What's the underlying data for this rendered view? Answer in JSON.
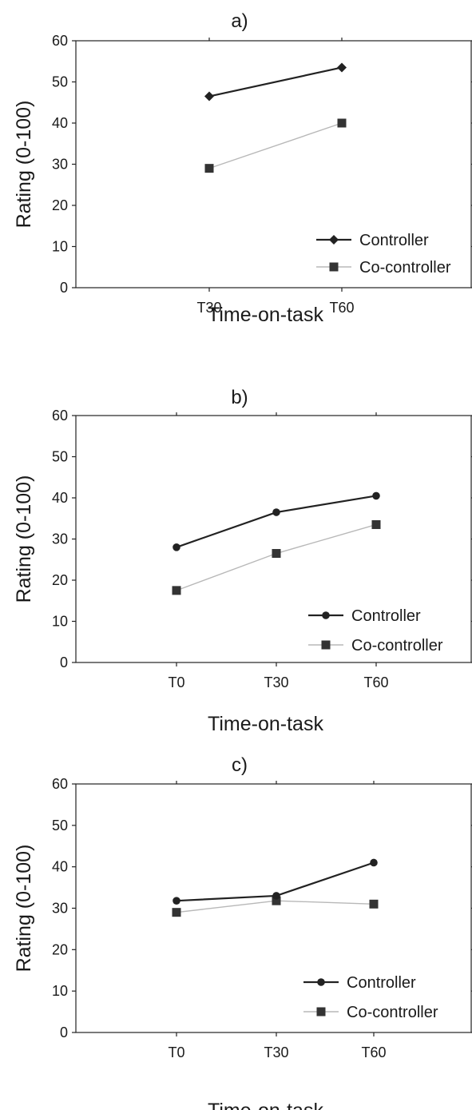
{
  "chart_data": [
    {
      "type": "line",
      "title": "a)",
      "xlabel": "Time-on-task",
      "ylabel": "Rating (0-100)",
      "ylim": [
        0,
        60
      ],
      "yticks": [
        "0",
        "10",
        "20",
        "30",
        "40",
        "50",
        "60"
      ],
      "categories": [
        "T30",
        "T60"
      ],
      "legend_position": "bottom-right",
      "grid": false,
      "series": [
        {
          "name": "Controller",
          "values": [
            46.5,
            53.5
          ],
          "color": "#222222",
          "marker": "diamond"
        },
        {
          "name": "Co-controller",
          "values": [
            29,
            40
          ],
          "color": "#b8b8b8",
          "marker": "square"
        }
      ]
    },
    {
      "type": "line",
      "title": "b)",
      "xlabel": "Time-on-task",
      "ylabel": "Rating (0-100)",
      "ylim": [
        0,
        60
      ],
      "yticks": [
        "0",
        "10",
        "20",
        "30",
        "40",
        "50",
        "60"
      ],
      "categories": [
        "T0",
        "T30",
        "T60"
      ],
      "legend_position": "bottom-right",
      "grid": false,
      "series": [
        {
          "name": "Controller",
          "values": [
            28,
            36.5,
            40.5
          ],
          "color": "#222222",
          "marker": "circle"
        },
        {
          "name": "Co-controller",
          "values": [
            17.5,
            26.5,
            33.5
          ],
          "color": "#b8b8b8",
          "marker": "square"
        }
      ]
    },
    {
      "type": "line",
      "title": "c)",
      "xlabel": "Time-on-task",
      "ylabel": "Rating (0-100)",
      "ylim": [
        0,
        60
      ],
      "yticks": [
        "0",
        "10",
        "20",
        "30",
        "40",
        "50",
        "60"
      ],
      "categories": [
        "T0",
        "T30",
        "T60"
      ],
      "legend_position": "bottom-right",
      "grid": false,
      "series": [
        {
          "name": "Controller",
          "values": [
            31.8,
            33,
            41
          ],
          "color": "#222222",
          "marker": "circle"
        },
        {
          "name": "Co-controller",
          "values": [
            29,
            31.8,
            31
          ],
          "color": "#b8b8b8",
          "marker": "square"
        }
      ]
    }
  ]
}
